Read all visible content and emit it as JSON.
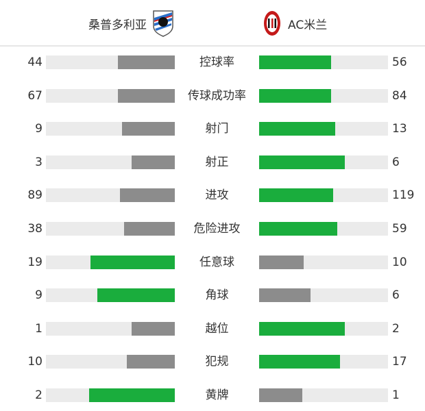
{
  "home": {
    "name": "桑普多利亚",
    "logo": "sampdoria-crest"
  },
  "away": {
    "name": "AC米兰",
    "logo": "ac-milan-crest"
  },
  "colors": {
    "leader": "#1aad3d",
    "trailer": "#8c8c8c",
    "track": "#ebebeb"
  },
  "stats": [
    {
      "label": "控球率",
      "home": 44,
      "away": 56
    },
    {
      "label": "传球成功率",
      "home": 67,
      "away": 84
    },
    {
      "label": "射门",
      "home": 9,
      "away": 13
    },
    {
      "label": "射正",
      "home": 3,
      "away": 6
    },
    {
      "label": "进攻",
      "home": 89,
      "away": 119
    },
    {
      "label": "危险进攻",
      "home": 38,
      "away": 59
    },
    {
      "label": "任意球",
      "home": 19,
      "away": 10
    },
    {
      "label": "角球",
      "home": 9,
      "away": 6
    },
    {
      "label": "越位",
      "home": 1,
      "away": 2
    },
    {
      "label": "犯规",
      "home": 10,
      "away": 17
    },
    {
      "label": "黄牌",
      "home": 2,
      "away": 1
    }
  ]
}
